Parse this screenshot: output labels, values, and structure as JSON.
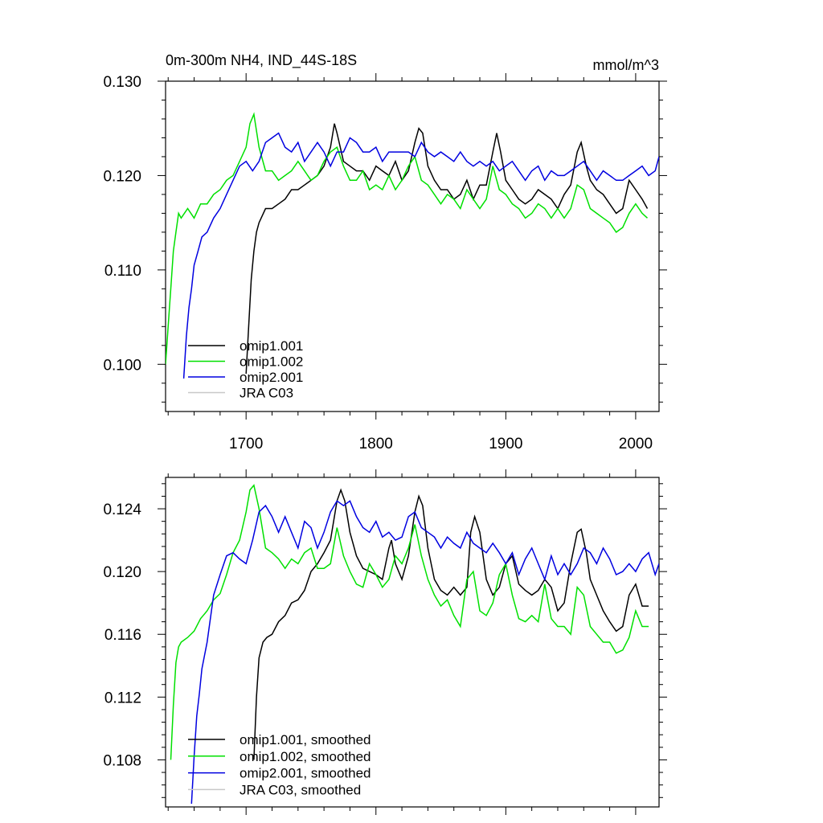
{
  "chart_data": [
    {
      "type": "line",
      "title": "0m-300m NH4, IND_44S-18S",
      "units": "mmol/m^3",
      "xlim": [
        1638,
        2018
      ],
      "ylim": [
        0.095,
        0.13
      ],
      "xticks": [
        1700,
        1800,
        1900,
        2000
      ],
      "xticklabels": [
        "1700",
        "1800",
        "1900",
        "2000"
      ],
      "yticks": [
        0.1,
        0.11,
        0.12,
        0.13
      ],
      "yticklabels": [
        "0.100",
        "0.110",
        "0.120",
        "0.130"
      ],
      "legend_position": "bottom-left",
      "series": [
        {
          "name": "omip1.001",
          "color": "#000000",
          "x": [
            1700,
            1702,
            1704,
            1706,
            1708,
            1710,
            1715,
            1720,
            1725,
            1730,
            1735,
            1740,
            1745,
            1750,
            1755,
            1760,
            1765,
            1768,
            1770,
            1775,
            1780,
            1785,
            1790,
            1795,
            1800,
            1805,
            1810,
            1815,
            1820,
            1825,
            1830,
            1833,
            1836,
            1840,
            1845,
            1850,
            1855,
            1860,
            1865,
            1870,
            1875,
            1880,
            1885,
            1890,
            1893,
            1896,
            1900,
            1905,
            1910,
            1915,
            1920,
            1925,
            1930,
            1935,
            1940,
            1945,
            1950,
            1955,
            1958,
            1962,
            1965,
            1970,
            1975,
            1980,
            1985,
            1990,
            1995,
            2000,
            2005,
            2009
          ],
          "values": [
            0.099,
            0.104,
            0.109,
            0.112,
            0.114,
            0.115,
            0.1165,
            0.1165,
            0.117,
            0.1175,
            0.1185,
            0.1185,
            0.119,
            0.1195,
            0.12,
            0.121,
            0.123,
            0.1255,
            0.1245,
            0.1215,
            0.121,
            0.1205,
            0.1205,
            0.1195,
            0.121,
            0.1205,
            0.12,
            0.1215,
            0.1195,
            0.1205,
            0.1235,
            0.125,
            0.1245,
            0.121,
            0.1195,
            0.1185,
            0.1185,
            0.1175,
            0.118,
            0.1195,
            0.1175,
            0.119,
            0.119,
            0.1225,
            0.1245,
            0.1225,
            0.1195,
            0.1185,
            0.1175,
            0.117,
            0.1175,
            0.1185,
            0.118,
            0.1175,
            0.1165,
            0.118,
            0.119,
            0.1225,
            0.1235,
            0.121,
            0.1195,
            0.1185,
            0.118,
            0.117,
            0.116,
            0.1165,
            0.1195,
            0.1185,
            0.1175,
            0.1165
          ]
        },
        {
          "name": "omip1.002",
          "color": "#00e000",
          "x": [
            1638,
            1640,
            1642,
            1644,
            1646,
            1648,
            1650,
            1655,
            1660,
            1665,
            1670,
            1675,
            1680,
            1685,
            1690,
            1695,
            1700,
            1703,
            1706,
            1710,
            1715,
            1720,
            1725,
            1730,
            1735,
            1740,
            1745,
            1750,
            1755,
            1760,
            1765,
            1770,
            1775,
            1780,
            1785,
            1790,
            1795,
            1800,
            1805,
            1810,
            1815,
            1820,
            1825,
            1830,
            1835,
            1840,
            1845,
            1850,
            1855,
            1860,
            1865,
            1870,
            1875,
            1880,
            1885,
            1890,
            1895,
            1900,
            1905,
            1910,
            1915,
            1920,
            1925,
            1930,
            1935,
            1940,
            1945,
            1950,
            1955,
            1960,
            1965,
            1970,
            1975,
            1980,
            1985,
            1990,
            1995,
            2000,
            2005,
            2009
          ],
          "values": [
            0.1,
            0.104,
            0.108,
            0.112,
            0.114,
            0.116,
            0.1155,
            0.1165,
            0.1155,
            0.117,
            0.117,
            0.118,
            0.1185,
            0.1195,
            0.12,
            0.1215,
            0.123,
            0.1255,
            0.1265,
            0.123,
            0.1205,
            0.1205,
            0.1195,
            0.12,
            0.1205,
            0.1215,
            0.1205,
            0.1195,
            0.12,
            0.1215,
            0.1225,
            0.123,
            0.121,
            0.1195,
            0.1195,
            0.1205,
            0.1185,
            0.119,
            0.1185,
            0.12,
            0.1185,
            0.1195,
            0.121,
            0.122,
            0.1195,
            0.119,
            0.118,
            0.117,
            0.118,
            0.1175,
            0.1165,
            0.1185,
            0.1175,
            0.1165,
            0.1175,
            0.121,
            0.1185,
            0.118,
            0.117,
            0.1165,
            0.1155,
            0.116,
            0.117,
            0.1165,
            0.1155,
            0.1165,
            0.1155,
            0.1165,
            0.119,
            0.1185,
            0.1165,
            0.116,
            0.1155,
            0.115,
            0.114,
            0.1145,
            0.116,
            0.117,
            0.116,
            0.1155
          ]
        },
        {
          "name": "omip2.001",
          "color": "#0000e0",
          "x": [
            1652,
            1654,
            1656,
            1658,
            1660,
            1663,
            1666,
            1670,
            1675,
            1680,
            1685,
            1690,
            1695,
            1700,
            1705,
            1710,
            1715,
            1720,
            1725,
            1730,
            1735,
            1740,
            1745,
            1750,
            1755,
            1760,
            1765,
            1770,
            1775,
            1780,
            1785,
            1790,
            1795,
            1800,
            1805,
            1810,
            1815,
            1820,
            1825,
            1830,
            1835,
            1840,
            1845,
            1850,
            1855,
            1860,
            1865,
            1870,
            1875,
            1880,
            1885,
            1890,
            1895,
            1900,
            1905,
            1910,
            1915,
            1920,
            1925,
            1930,
            1935,
            1940,
            1945,
            1950,
            1955,
            1960,
            1965,
            1970,
            1975,
            1980,
            1985,
            1990,
            1995,
            2000,
            2005,
            2010,
            2015,
            2018
          ],
          "values": [
            0.0985,
            0.103,
            0.106,
            0.108,
            0.1105,
            0.112,
            0.1135,
            0.114,
            0.1155,
            0.1165,
            0.118,
            0.1195,
            0.121,
            0.1215,
            0.1205,
            0.1215,
            0.1235,
            0.124,
            0.1245,
            0.123,
            0.1225,
            0.1235,
            0.1215,
            0.1225,
            0.1235,
            0.1225,
            0.121,
            0.1225,
            0.1225,
            0.124,
            0.1235,
            0.1225,
            0.1225,
            0.123,
            0.1215,
            0.1225,
            0.1225,
            0.1225,
            0.1225,
            0.122,
            0.1235,
            0.1225,
            0.122,
            0.1225,
            0.122,
            0.1215,
            0.1225,
            0.1215,
            0.121,
            0.1215,
            0.121,
            0.1215,
            0.1205,
            0.121,
            0.1215,
            0.1205,
            0.1195,
            0.1205,
            0.121,
            0.1195,
            0.1205,
            0.12,
            0.12,
            0.1205,
            0.121,
            0.1215,
            0.1205,
            0.1195,
            0.1205,
            0.12,
            0.1195,
            0.1195,
            0.12,
            0.1205,
            0.121,
            0.12,
            0.1205,
            0.122
          ]
        },
        {
          "name": "JRA C03",
          "color": "#c8c8c8",
          "x": [],
          "values": []
        }
      ]
    },
    {
      "type": "line",
      "xlim": [
        1638,
        2018
      ],
      "ylim": [
        0.105,
        0.126
      ],
      "xticks": [
        1700,
        1800,
        1900,
        2000
      ],
      "yticks": [
        0.108,
        0.112,
        0.116,
        0.12,
        0.124
      ],
      "yticklabels": [
        "0.108",
        "0.112",
        "0.116",
        "0.120",
        "0.124"
      ],
      "legend_position": "bottom-left",
      "series": [
        {
          "name": "omip1.001, smoothed",
          "color": "#000000",
          "x": [
            1706,
            1708,
            1710,
            1713,
            1716,
            1720,
            1725,
            1730,
            1735,
            1740,
            1745,
            1750,
            1755,
            1760,
            1765,
            1770,
            1773,
            1776,
            1780,
            1785,
            1790,
            1795,
            1800,
            1805,
            1810,
            1812,
            1815,
            1820,
            1825,
            1830,
            1833,
            1836,
            1840,
            1845,
            1850,
            1855,
            1860,
            1865,
            1870,
            1873,
            1876,
            1880,
            1885,
            1890,
            1895,
            1900,
            1905,
            1910,
            1915,
            1920,
            1925,
            1930,
            1935,
            1940,
            1945,
            1950,
            1955,
            1958,
            1962,
            1965,
            1970,
            1975,
            1980,
            1985,
            1990,
            1995,
            2000,
            2005,
            2010
          ],
          "values": [
            0.108,
            0.112,
            0.1145,
            0.1155,
            0.1158,
            0.116,
            0.1168,
            0.1172,
            0.118,
            0.1182,
            0.1188,
            0.12,
            0.1205,
            0.1212,
            0.122,
            0.1245,
            0.1252,
            0.1245,
            0.1225,
            0.121,
            0.1202,
            0.12,
            0.1198,
            0.1195,
            0.1215,
            0.122,
            0.1205,
            0.1195,
            0.121,
            0.1238,
            0.1248,
            0.1242,
            0.1215,
            0.1195,
            0.1188,
            0.1185,
            0.119,
            0.1185,
            0.119,
            0.1225,
            0.1235,
            0.1225,
            0.1195,
            0.1185,
            0.119,
            0.1205,
            0.121,
            0.1192,
            0.1188,
            0.1185,
            0.1188,
            0.1195,
            0.119,
            0.1175,
            0.118,
            0.1205,
            0.1225,
            0.1227,
            0.1212,
            0.1195,
            0.1185,
            0.1175,
            0.1168,
            0.1162,
            0.1165,
            0.1185,
            0.1192,
            0.1178,
            0.1178
          ]
        },
        {
          "name": "omip1.002, smoothed",
          "color": "#00e000",
          "x": [
            1642,
            1644,
            1646,
            1648,
            1650,
            1655,
            1660,
            1665,
            1670,
            1675,
            1680,
            1685,
            1690,
            1695,
            1700,
            1703,
            1706,
            1710,
            1715,
            1720,
            1725,
            1730,
            1735,
            1740,
            1745,
            1750,
            1755,
            1760,
            1765,
            1770,
            1775,
            1780,
            1785,
            1790,
            1795,
            1800,
            1805,
            1810,
            1815,
            1820,
            1825,
            1830,
            1835,
            1840,
            1845,
            1850,
            1855,
            1860,
            1865,
            1870,
            1875,
            1880,
            1885,
            1890,
            1895,
            1900,
            1905,
            1910,
            1915,
            1920,
            1925,
            1930,
            1935,
            1940,
            1945,
            1950,
            1955,
            1960,
            1965,
            1970,
            1975,
            1980,
            1985,
            1990,
            1995,
            2000,
            2005,
            2010
          ],
          "values": [
            0.108,
            0.1115,
            0.1142,
            0.1152,
            0.1155,
            0.1158,
            0.1162,
            0.117,
            0.1175,
            0.1182,
            0.1186,
            0.1198,
            0.1212,
            0.122,
            0.1238,
            0.1252,
            0.1255,
            0.124,
            0.1215,
            0.1212,
            0.1208,
            0.1202,
            0.1208,
            0.1205,
            0.1212,
            0.1215,
            0.1202,
            0.1202,
            0.1205,
            0.1228,
            0.121,
            0.12,
            0.1192,
            0.119,
            0.1205,
            0.1198,
            0.119,
            0.1195,
            0.121,
            0.1205,
            0.1215,
            0.123,
            0.121,
            0.1195,
            0.1185,
            0.1178,
            0.1182,
            0.1172,
            0.1165,
            0.1195,
            0.12,
            0.1175,
            0.1172,
            0.118,
            0.1198,
            0.1205,
            0.1185,
            0.117,
            0.1168,
            0.1172,
            0.1168,
            0.1192,
            0.117,
            0.1165,
            0.1165,
            0.116,
            0.119,
            0.1185,
            0.1165,
            0.116,
            0.1155,
            0.1155,
            0.1148,
            0.115,
            0.1158,
            0.1175,
            0.1165,
            0.1165
          ]
        },
        {
          "name": "omip2.001, smoothed",
          "color": "#0000e0",
          "x": [
            1658,
            1660,
            1662,
            1664,
            1666,
            1670,
            1675,
            1680,
            1685,
            1690,
            1695,
            1700,
            1705,
            1710,
            1715,
            1720,
            1725,
            1730,
            1735,
            1740,
            1745,
            1750,
            1755,
            1760,
            1765,
            1770,
            1775,
            1780,
            1785,
            1790,
            1795,
            1800,
            1805,
            1810,
            1815,
            1820,
            1825,
            1830,
            1835,
            1840,
            1845,
            1850,
            1855,
            1860,
            1865,
            1870,
            1875,
            1880,
            1885,
            1890,
            1895,
            1900,
            1905,
            1910,
            1915,
            1920,
            1925,
            1930,
            1935,
            1940,
            1945,
            1950,
            1955,
            1960,
            1965,
            1970,
            1975,
            1980,
            1985,
            1990,
            1995,
            2000,
            2005,
            2010,
            2015,
            2018
          ],
          "values": [
            0.1052,
            0.1082,
            0.1108,
            0.1122,
            0.1138,
            0.1155,
            0.1185,
            0.1198,
            0.121,
            0.1212,
            0.1208,
            0.1205,
            0.122,
            0.1238,
            0.1242,
            0.1235,
            0.1225,
            0.1235,
            0.1225,
            0.1215,
            0.1232,
            0.1228,
            0.1215,
            0.1225,
            0.1238,
            0.1245,
            0.1242,
            0.1245,
            0.1235,
            0.1228,
            0.1225,
            0.1232,
            0.1222,
            0.1225,
            0.122,
            0.1222,
            0.1235,
            0.1238,
            0.1228,
            0.1225,
            0.1222,
            0.1215,
            0.1222,
            0.1218,
            0.1215,
            0.1225,
            0.1218,
            0.1215,
            0.1212,
            0.1218,
            0.1212,
            0.1205,
            0.1212,
            0.1198,
            0.1208,
            0.1215,
            0.1205,
            0.1195,
            0.121,
            0.1198,
            0.1205,
            0.1198,
            0.1205,
            0.1215,
            0.1212,
            0.1205,
            0.1215,
            0.1208,
            0.1198,
            0.12,
            0.1205,
            0.12,
            0.1208,
            0.1212,
            0.1198,
            0.1205
          ]
        },
        {
          "name": "JRA C03, smoothed",
          "color": "#c8c8c8",
          "x": [],
          "values": []
        }
      ]
    }
  ]
}
